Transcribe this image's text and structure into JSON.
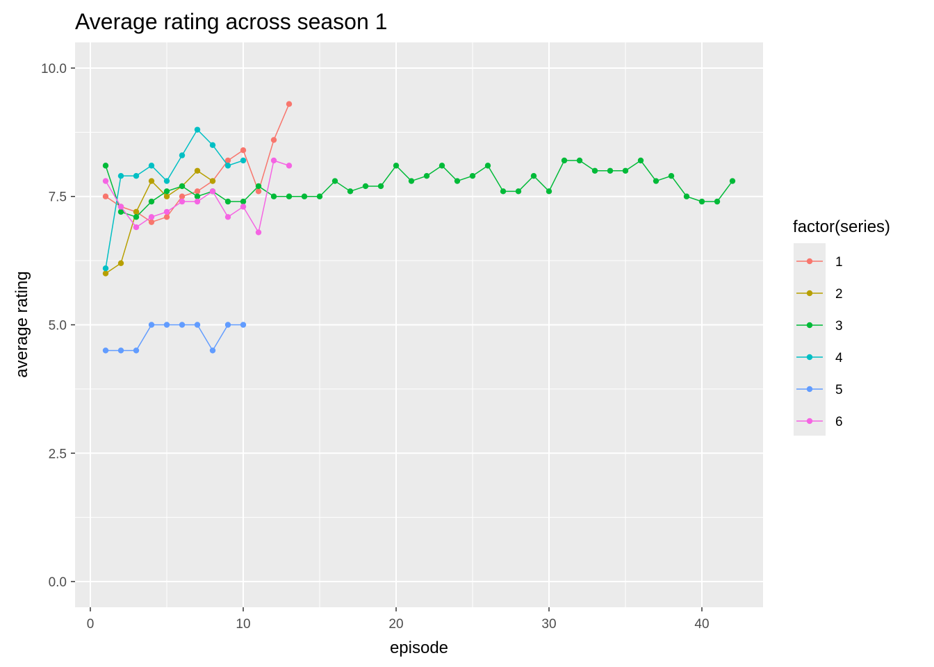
{
  "chart_data": {
    "type": "line",
    "title": "Average rating across season 1",
    "xlabel": "episode",
    "ylabel": "average rating",
    "xlim": [
      -1,
      44
    ],
    "ylim": [
      -0.5,
      10.5
    ],
    "x_ticks": [
      0,
      10,
      20,
      30,
      40
    ],
    "x_tick_labels": [
      "0",
      "10",
      "20",
      "30",
      "40"
    ],
    "y_ticks": [
      0,
      2.5,
      5,
      7.5,
      10
    ],
    "y_tick_labels": [
      "0.0",
      "2.5",
      "5.0",
      "7.5",
      "10.0"
    ],
    "grid": true,
    "legend_title": "factor(series)",
    "legend_position": "right",
    "series": [
      {
        "name": "1",
        "color": "#F8766D",
        "x": [
          1,
          2,
          3,
          4,
          5,
          6,
          7,
          8,
          9,
          10,
          11,
          12,
          13
        ],
        "values": [
          7.5,
          7.3,
          7.2,
          7.0,
          7.1,
          7.5,
          7.6,
          7.8,
          8.2,
          8.4,
          7.6,
          8.6,
          9.3
        ]
      },
      {
        "name": "2",
        "color": "#B79F00",
        "x": [
          1,
          2,
          3,
          4,
          5,
          6,
          7,
          8
        ],
        "values": [
          6.0,
          6.2,
          7.2,
          7.8,
          7.5,
          7.7,
          8.0,
          7.8
        ]
      },
      {
        "name": "3",
        "color": "#00BA38",
        "x": [
          1,
          2,
          3,
          4,
          5,
          6,
          7,
          8,
          9,
          10,
          11,
          12,
          13,
          14,
          15,
          16,
          17,
          18,
          19,
          20,
          21,
          22,
          23,
          24,
          25,
          26,
          27,
          28,
          29,
          30,
          31,
          32,
          33,
          34,
          35,
          36,
          37,
          38,
          39,
          40,
          41,
          42
        ],
        "values": [
          8.1,
          7.2,
          7.1,
          7.4,
          7.6,
          7.7,
          7.5,
          7.6,
          7.4,
          7.4,
          7.7,
          7.5,
          7.5,
          7.5,
          7.5,
          7.8,
          7.6,
          7.7,
          7.7,
          8.1,
          7.8,
          7.9,
          8.1,
          7.8,
          7.9,
          8.1,
          7.6,
          7.6,
          7.9,
          7.6,
          8.2,
          8.2,
          8.0,
          8.0,
          8.0,
          8.2,
          7.8,
          7.9,
          7.5,
          7.4,
          7.4,
          7.8
        ]
      },
      {
        "name": "4",
        "color": "#00BFC4",
        "x": [
          1,
          2,
          3,
          4,
          5,
          6,
          7,
          8,
          9,
          10
        ],
        "values": [
          6.1,
          7.9,
          7.9,
          8.1,
          7.8,
          8.3,
          8.8,
          8.5,
          8.1,
          8.2
        ]
      },
      {
        "name": "5",
        "color": "#619CFF",
        "x": [
          1,
          2,
          3,
          4,
          5,
          6,
          7,
          8,
          9,
          10
        ],
        "values": [
          4.5,
          4.5,
          4.5,
          5.0,
          5.0,
          5.0,
          5.0,
          4.5,
          5.0,
          5.0
        ]
      },
      {
        "name": "6",
        "color": "#F564E3",
        "x": [
          1,
          2,
          3,
          4,
          5,
          6,
          7,
          8,
          9,
          10,
          11,
          12,
          13
        ],
        "values": [
          7.8,
          7.3,
          6.9,
          7.1,
          7.2,
          7.4,
          7.4,
          7.6,
          7.1,
          7.3,
          6.8,
          8.2,
          8.1
        ]
      }
    ]
  }
}
